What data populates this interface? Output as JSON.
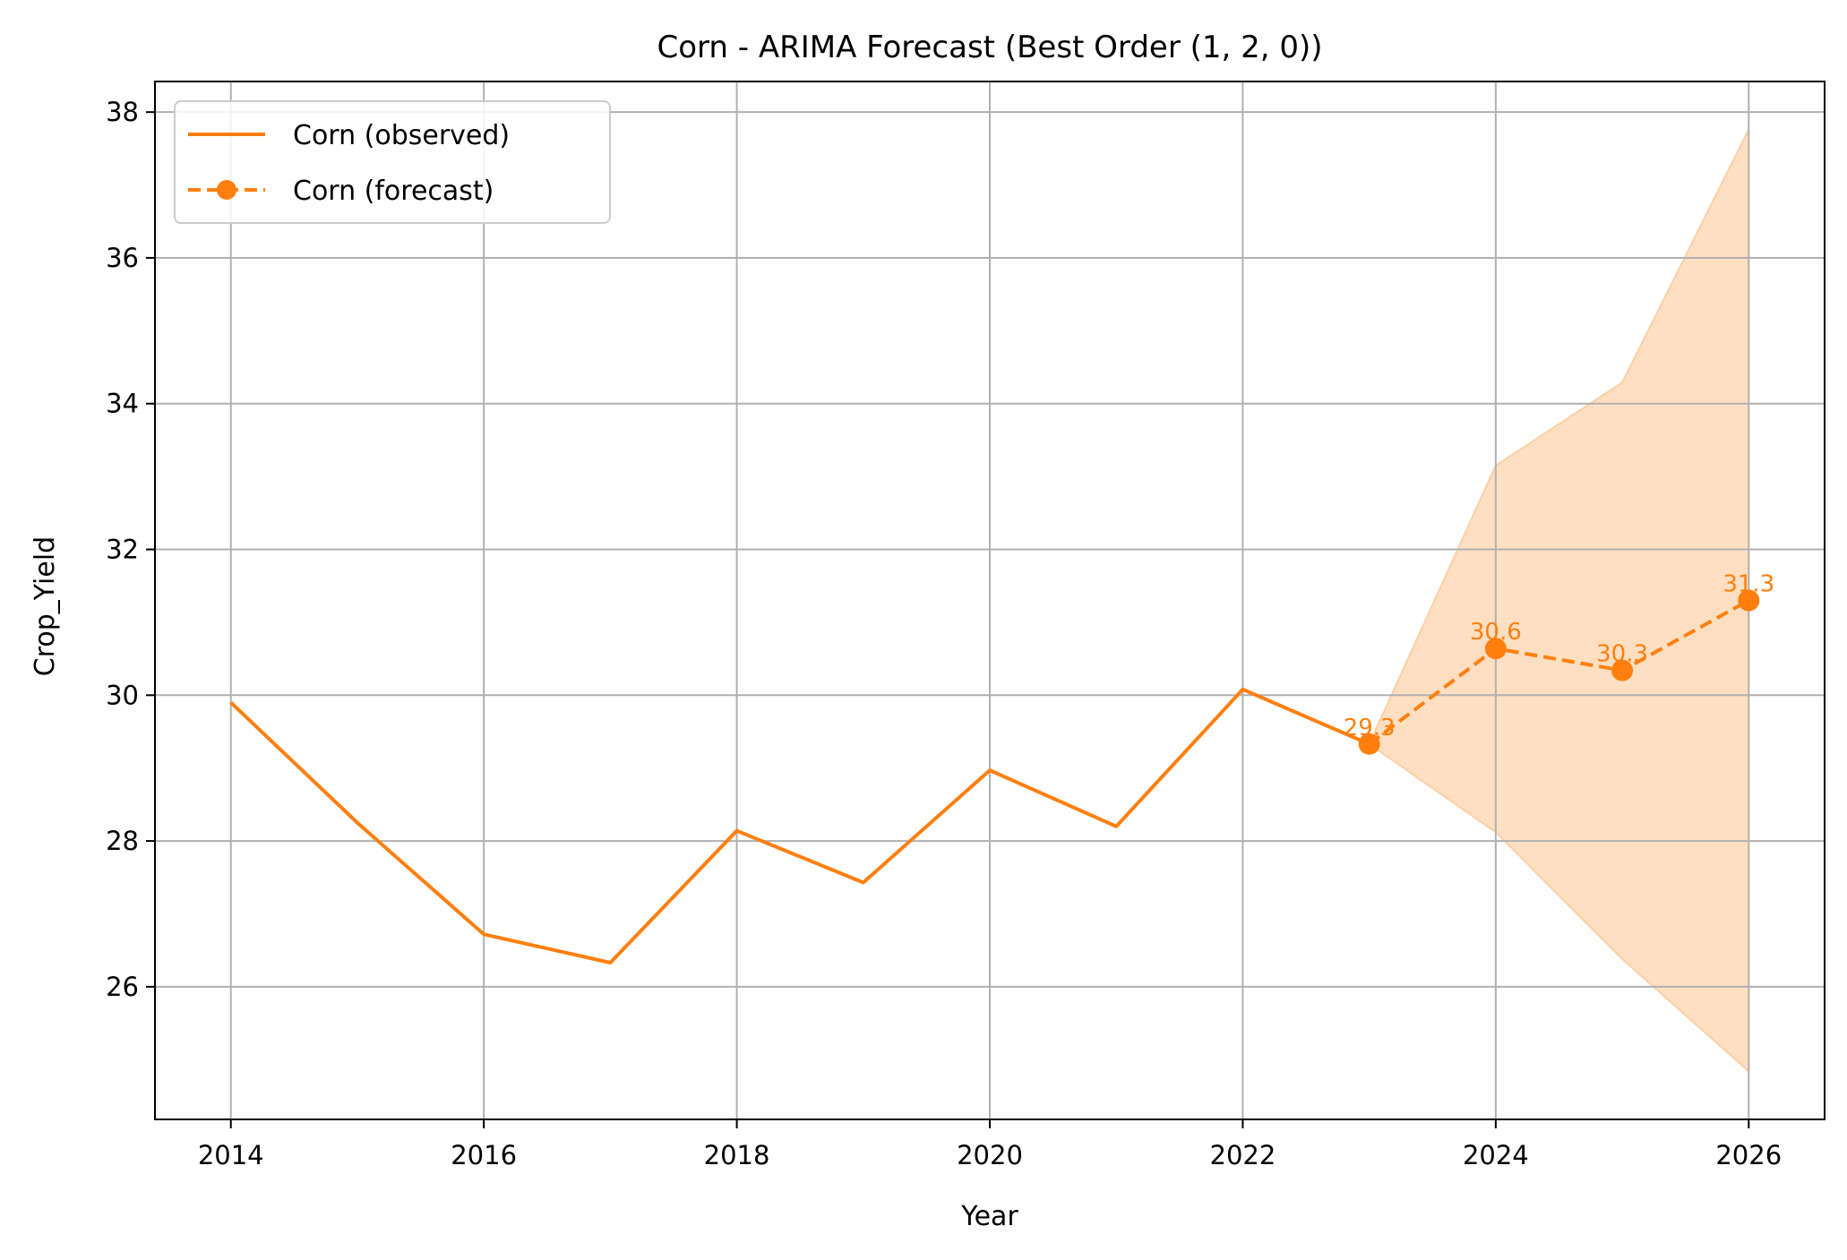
{
  "chart_data": {
    "type": "line",
    "title": "Corn - ARIMA Forecast (Best Order (1, 2, 0))",
    "xlabel": "Year",
    "ylabel": "Crop_Yield",
    "xlim": [
      2013.4,
      2026.6
    ],
    "ylim": [
      24.18,
      38.42
    ],
    "xticks": [
      2014,
      2016,
      2018,
      2020,
      2022,
      2024,
      2026
    ],
    "yticks": [
      26,
      28,
      30,
      32,
      34,
      36,
      38
    ],
    "grid": true,
    "legend_position": "top-left",
    "colors": {
      "series": "#ff7f0e",
      "band": "#ffdfc2",
      "band_edge": "#ffcfa5",
      "grid": "#b0b0b0"
    },
    "series": [
      {
        "name": "Corn (observed)",
        "style": "solid",
        "x": [
          2014,
          2015,
          2016,
          2017,
          2018,
          2019,
          2020,
          2021,
          2022,
          2023
        ],
        "y": [
          29.9,
          28.25,
          26.72,
          26.33,
          28.14,
          27.43,
          28.97,
          28.2,
          30.08,
          29.33
        ]
      },
      {
        "name": "Corn (forecast)",
        "style": "dashed-marker",
        "x": [
          2023,
          2024,
          2025,
          2026
        ],
        "y": [
          29.33,
          30.64,
          30.34,
          31.3
        ],
        "labels": [
          "29.3",
          "30.6",
          "30.3",
          "31.3"
        ]
      }
    ],
    "confidence_band": {
      "x": [
        2023,
        2024,
        2025,
        2026
      ],
      "lower": [
        29.33,
        28.12,
        26.38,
        24.84
      ],
      "upper": [
        29.33,
        33.15,
        34.29,
        37.76
      ]
    }
  }
}
